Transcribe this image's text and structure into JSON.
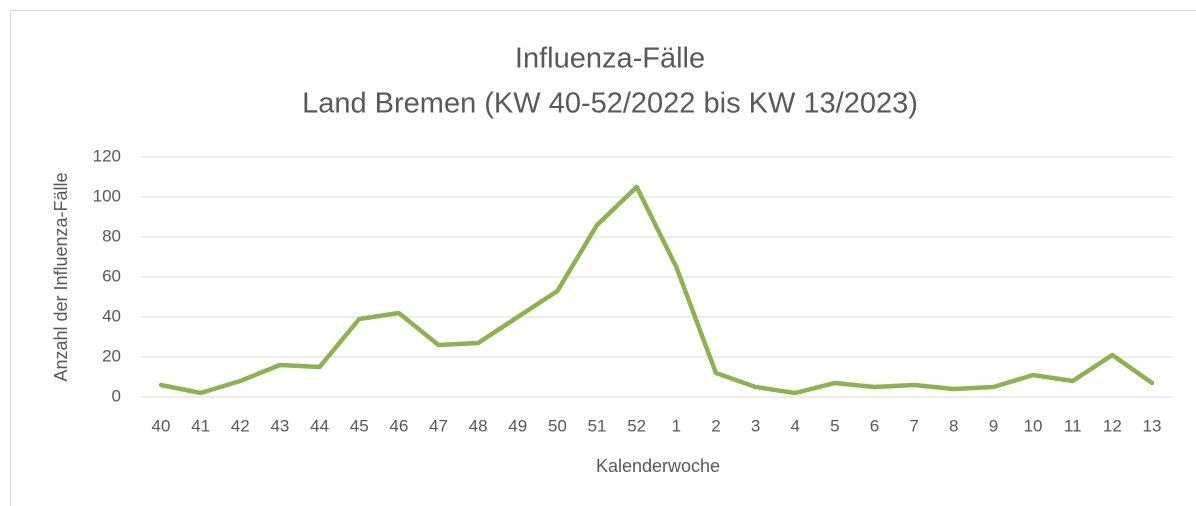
{
  "chart_data": {
    "type": "line",
    "title": "Influenza-Fälle",
    "subtitle": "Land Bremen (KW 40-52/2022 bis KW 13/2023)",
    "x_label": "Kalenderwoche",
    "y_label": "Anzahl der Influenza-Fälle",
    "categories": [
      "40",
      "41",
      "42",
      "43",
      "44",
      "45",
      "46",
      "47",
      "48",
      "49",
      "50",
      "51",
      "52",
      "1",
      "2",
      "3",
      "4",
      "5",
      "6",
      "7",
      "8",
      "9",
      "10",
      "11",
      "12",
      "13"
    ],
    "series": [
      {
        "name": "Influenza-Fälle",
        "color": "#8db34f",
        "values": [
          6,
          2,
          8,
          16,
          15,
          39,
          42,
          26,
          27,
          40,
          53,
          86,
          105,
          65,
          12,
          5,
          2,
          7,
          5,
          6,
          4,
          5,
          11,
          8,
          21,
          7
        ]
      }
    ],
    "ylim": [
      0,
      120
    ],
    "yticks": [
      0,
      20,
      40,
      60,
      80,
      100,
      120
    ],
    "grid": true
  }
}
